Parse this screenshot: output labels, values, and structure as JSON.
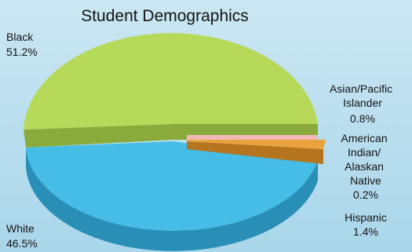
{
  "chart_data": {
    "type": "pie",
    "title": "Student Demographics",
    "slices": [
      {
        "name": "Black",
        "value": 51.2,
        "label": "51.2%",
        "color": "#b7d95a"
      },
      {
        "name": "Asian/Pacific Islander",
        "value": 0.8,
        "label": "0.8%",
        "color": "#f2b8b8"
      },
      {
        "name": "American Indian/ Alaskan Native",
        "value": 0.2,
        "label": "0.2%",
        "color": "#f3e2a8"
      },
      {
        "name": "Hispanic",
        "value": 1.4,
        "label": "1.4%",
        "color": "#eaa33c"
      },
      {
        "name": "White",
        "value": 46.5,
        "label": "46.5%",
        "color": "#45bde6"
      }
    ],
    "legend": "none",
    "style": "3d-exploded"
  }
}
